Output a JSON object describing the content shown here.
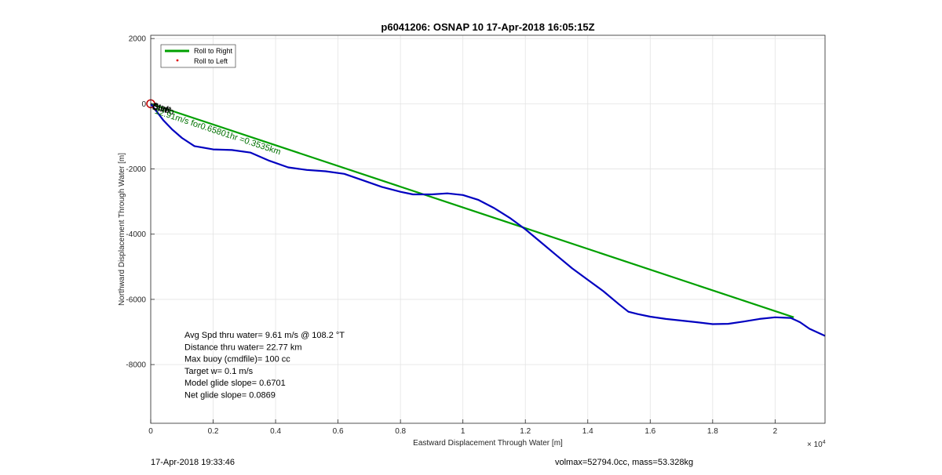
{
  "chart_data": {
    "type": "line",
    "title": "p6041206: OSNAP 10 17-Apr-2018 16:05:15Z",
    "xlabel": "Eastward Displacement Through Water [m]",
    "ylabel": "Northward Displacement Through Water [m]",
    "x_exponent_label": "× 10",
    "x_exponent_power": "4",
    "xlim": [
      0,
      21600
    ],
    "ylim": [
      -9800,
      2100
    ],
    "x_ticks": [
      0,
      2000,
      4000,
      6000,
      8000,
      10000,
      12000,
      14000,
      16000,
      18000,
      20000
    ],
    "x_tick_labels": [
      "0",
      "0.2",
      "0.4",
      "0.6",
      "0.8",
      "1",
      "1.2",
      "1.4",
      "1.6",
      "1.8",
      "2"
    ],
    "y_ticks": [
      2000,
      0,
      -2000,
      -4000,
      -6000,
      -8000
    ],
    "y_tick_labels": [
      "2000",
      "0",
      "-2000",
      "-4000",
      "-6000",
      "-8000"
    ],
    "grid": true,
    "legend_position": "top-left",
    "series": [
      {
        "name": "Roll to Right",
        "color": "#00a000",
        "x": [
          0,
          20600
        ],
        "y": [
          0,
          -6550
        ]
      },
      {
        "name": "Roll to Left",
        "color": "#e00000",
        "marker": "dot",
        "x": [],
        "y": []
      },
      {
        "name": "",
        "color": "#0000c0",
        "x": [
          0,
          200,
          400,
          700,
          1000,
          1400,
          2000,
          2600,
          3200,
          3800,
          4400,
          5000,
          5600,
          6200,
          6800,
          7400,
          8000,
          8400,
          9000,
          9500,
          10000,
          10500,
          11000,
          11500,
          12000,
          12500,
          13000,
          13500,
          14000,
          14500,
          15000,
          15300,
          15600,
          16000,
          16500,
          17000,
          17500,
          18000,
          18500,
          19000,
          19500,
          20000,
          20500,
          20800,
          21100,
          21600
        ],
        "y": [
          0,
          -250,
          -500,
          -800,
          -1050,
          -1300,
          -1400,
          -1420,
          -1500,
          -1750,
          -1950,
          -2030,
          -2070,
          -2150,
          -2350,
          -2550,
          -2700,
          -2780,
          -2780,
          -2750,
          -2800,
          -2950,
          -3200,
          -3500,
          -3850,
          -4250,
          -4650,
          -5050,
          -5400,
          -5750,
          -6150,
          -6380,
          -6450,
          -6530,
          -6600,
          -6650,
          -6700,
          -6760,
          -6750,
          -6680,
          -6600,
          -6550,
          -6570,
          -6700,
          -6900,
          -7120
        ]
      }
    ],
    "annotations": {
      "start_circle": {
        "x": 0,
        "y": 0,
        "color": "#c00000"
      },
      "overlay_labels": [
        "Start",
        "Surf",
        "Dive",
        "Climb"
      ],
      "segment_label": "12.91m/s for0.65801hr =0.3535km"
    },
    "stats": [
      "Avg Spd thru water=  9.61 m/s @ 108.2 °T",
      "Distance thru water= 22.77 km",
      "Max buoy (cmdfile)= 100 cc",
      "Target w= 0.1 m/s",
      "Model glide slope= 0.6701",
      "Net glide slope= 0.0869"
    ]
  },
  "footer": {
    "timestamp": "17-Apr-2018 19:33:46",
    "mass_info": "volmax=52794.0cc, mass=53.328kg"
  }
}
